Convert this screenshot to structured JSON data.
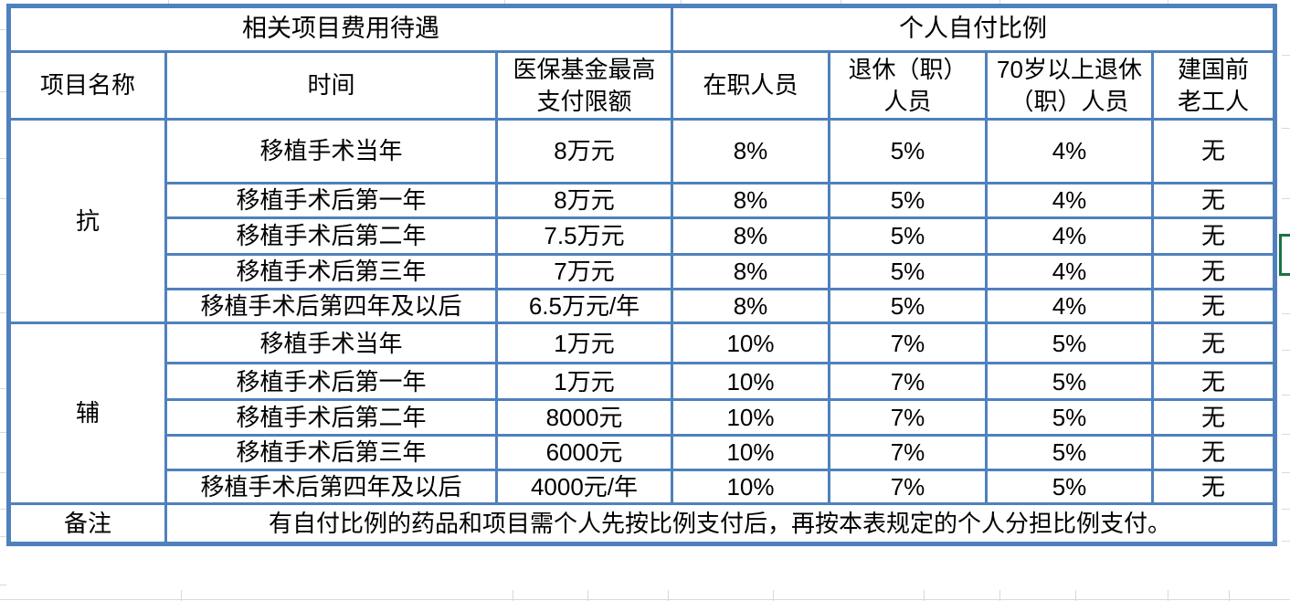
{
  "table": {
    "section_headers": {
      "left": "相关项目费用待遇",
      "right": "个人自付比例"
    },
    "columns": [
      "项目名称",
      "时间",
      "医保基金最高\n支付限额",
      "在职人员",
      "退休（职）\n人员",
      "70岁以上退休\n（职）人员",
      "建国前\n老工人"
    ],
    "groups": [
      {
        "name": "抗",
        "rows": [
          {
            "time": "移植手术当年",
            "limit": "8万元",
            "active": "8%",
            "retired": "5%",
            "over70": "4%",
            "pre1949": "无"
          },
          {
            "time": "移植手术后第一年",
            "limit": "8万元",
            "active": "8%",
            "retired": "5%",
            "over70": "4%",
            "pre1949": "无"
          },
          {
            "time": "移植手术后第二年",
            "limit": "7.5万元",
            "active": "8%",
            "retired": "5%",
            "over70": "4%",
            "pre1949": "无"
          },
          {
            "time": "移植手术后第三年",
            "limit": "7万元",
            "active": "8%",
            "retired": "5%",
            "over70": "4%",
            "pre1949": "无"
          },
          {
            "time": "移植手术后第四年及以后",
            "limit": "6.5万元/年",
            "active": "8%",
            "retired": "5%",
            "over70": "4%",
            "pre1949": "无"
          }
        ]
      },
      {
        "name": "辅",
        "rows": [
          {
            "time": "移植手术当年",
            "limit": "1万元",
            "active": "10%",
            "retired": "7%",
            "over70": "5%",
            "pre1949": "无"
          },
          {
            "time": "移植手术后第一年",
            "limit": "1万元",
            "active": "10%",
            "retired": "7%",
            "over70": "5%",
            "pre1949": "无"
          },
          {
            "time": "移植手术后第二年",
            "limit": "8000元",
            "active": "10%",
            "retired": "7%",
            "over70": "5%",
            "pre1949": "无"
          },
          {
            "time": "移植手术后第三年",
            "limit": "6000元",
            "active": "10%",
            "retired": "7%",
            "over70": "5%",
            "pre1949": "无"
          },
          {
            "time": "移植手术后第四年及以后",
            "limit": "4000元/年",
            "active": "10%",
            "retired": "7%",
            "over70": "5%",
            "pre1949": "无"
          }
        ]
      }
    ],
    "note": {
      "label": "备注",
      "text": "有自付比例的药品和项目需个人先按比例支付后，再按本表规定的个人分担比例支付。"
    }
  },
  "colors": {
    "table_border": "#4F81BD",
    "selection_outline": "#1E7145",
    "gridline": "#D9D9D9",
    "text": "#000000"
  }
}
